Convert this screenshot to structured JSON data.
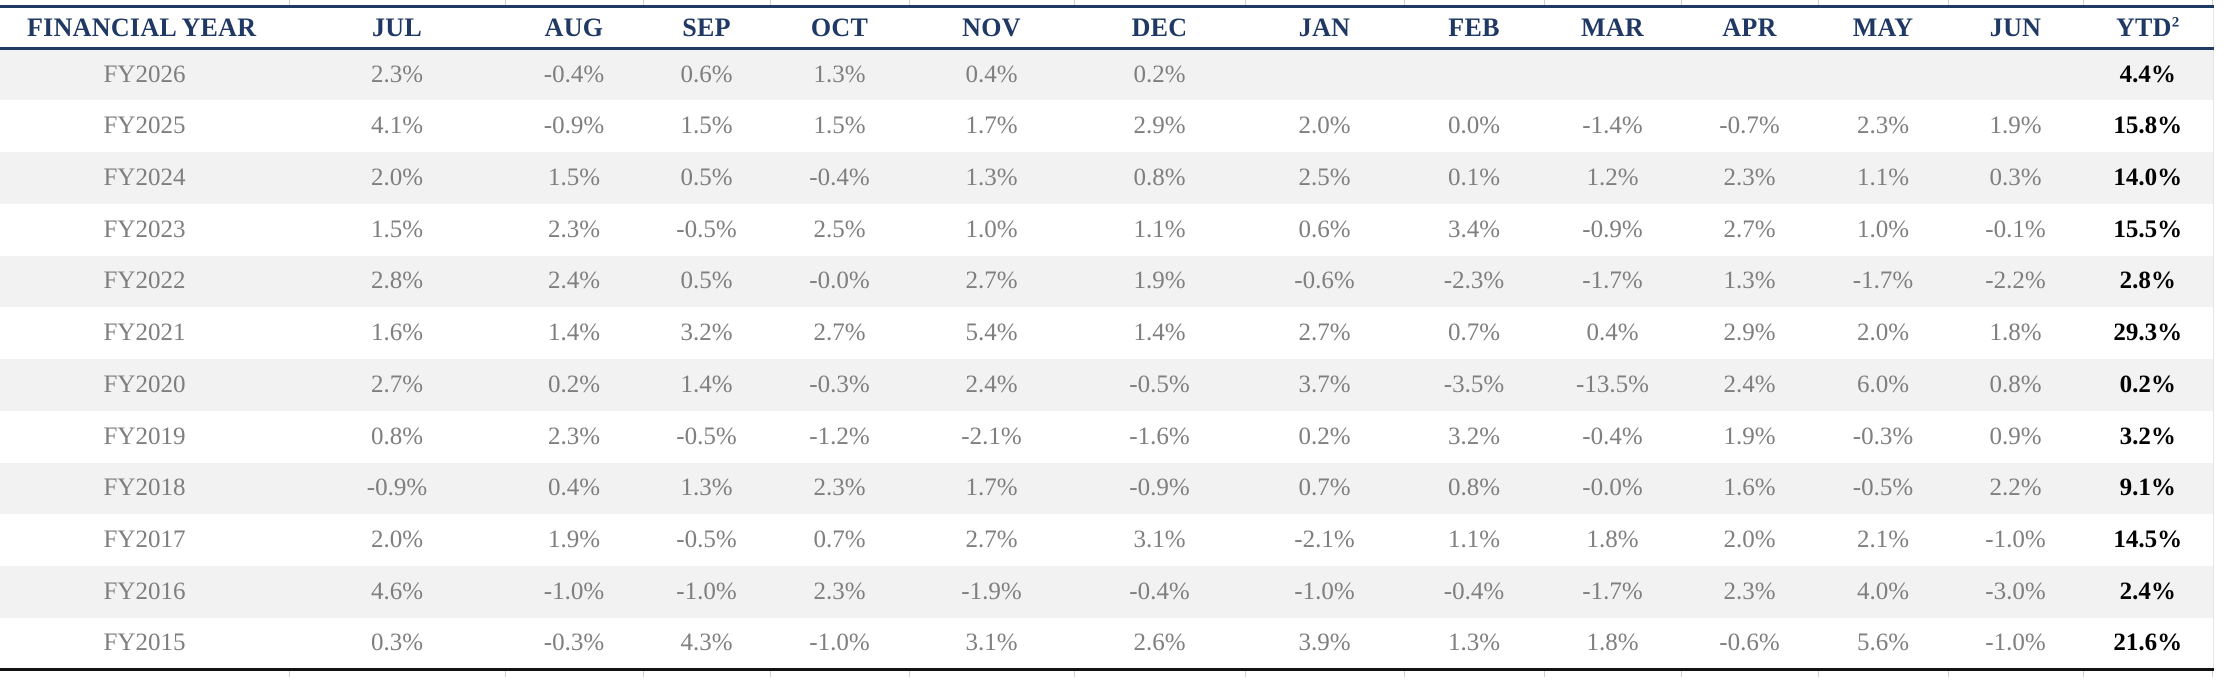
{
  "colors": {
    "header_navy": "#1F3864",
    "value_gray": "#7F7F7F",
    "stripe_gray": "#F2F2F2",
    "ytd_black": "#000000",
    "gridline_stub_gray": "#CFCFCF",
    "bottom_rule": "#121212"
  },
  "chart_data": {
    "type": "table",
    "title": "",
    "columns": [
      "FINANCIAL YEAR",
      "JUL",
      "AUG",
      "SEP",
      "OCT",
      "NOV",
      "DEC",
      "JAN",
      "FEB",
      "MAR",
      "APR",
      "MAY",
      "JUN",
      "YTD"
    ],
    "ytd_superscript": "2",
    "rows": [
      {
        "year": "FY2026",
        "monthly": [
          "2.3%",
          "-0.4%",
          "0.6%",
          "1.3%",
          "0.4%",
          "0.2%",
          "",
          "",
          "",
          "",
          "",
          ""
        ],
        "ytd": "4.4%"
      },
      {
        "year": "FY2025",
        "monthly": [
          "4.1%",
          "-0.9%",
          "1.5%",
          "1.5%",
          "1.7%",
          "2.9%",
          "2.0%",
          "0.0%",
          "-1.4%",
          "-0.7%",
          "2.3%",
          "1.9%"
        ],
        "ytd": "15.8%"
      },
      {
        "year": "FY2024",
        "monthly": [
          "2.0%",
          "1.5%",
          "0.5%",
          "-0.4%",
          "1.3%",
          "0.8%",
          "2.5%",
          "0.1%",
          "1.2%",
          "2.3%",
          "1.1%",
          "0.3%"
        ],
        "ytd": "14.0%"
      },
      {
        "year": "FY2023",
        "monthly": [
          "1.5%",
          "2.3%",
          "-0.5%",
          "2.5%",
          "1.0%",
          "1.1%",
          "0.6%",
          "3.4%",
          "-0.9%",
          "2.7%",
          "1.0%",
          "-0.1%"
        ],
        "ytd": "15.5%"
      },
      {
        "year": "FY2022",
        "monthly": [
          "2.8%",
          "2.4%",
          "0.5%",
          "-0.0%",
          "2.7%",
          "1.9%",
          "-0.6%",
          "-2.3%",
          "-1.7%",
          "1.3%",
          "-1.7%",
          "-2.2%"
        ],
        "ytd": "2.8%"
      },
      {
        "year": "FY2021",
        "monthly": [
          "1.6%",
          "1.4%",
          "3.2%",
          "2.7%",
          "5.4%",
          "1.4%",
          "2.7%",
          "0.7%",
          "0.4%",
          "2.9%",
          "2.0%",
          "1.8%"
        ],
        "ytd": "29.3%"
      },
      {
        "year": "FY2020",
        "monthly": [
          "2.7%",
          "0.2%",
          "1.4%",
          "-0.3%",
          "2.4%",
          "-0.5%",
          "3.7%",
          "-3.5%",
          "-13.5%",
          "2.4%",
          "6.0%",
          "0.8%"
        ],
        "ytd": "0.2%"
      },
      {
        "year": "FY2019",
        "monthly": [
          "0.8%",
          "2.3%",
          "-0.5%",
          "-1.2%",
          "-2.1%",
          "-1.6%",
          "0.2%",
          "3.2%",
          "-0.4%",
          "1.9%",
          "-0.3%",
          "0.9%"
        ],
        "ytd": "3.2%"
      },
      {
        "year": "FY2018",
        "monthly": [
          "-0.9%",
          "0.4%",
          "1.3%",
          "2.3%",
          "1.7%",
          "-0.9%",
          "0.7%",
          "0.8%",
          "-0.0%",
          "1.6%",
          "-0.5%",
          "2.2%"
        ],
        "ytd": "9.1%"
      },
      {
        "year": "FY2017",
        "monthly": [
          "2.0%",
          "1.9%",
          "-0.5%",
          "0.7%",
          "2.7%",
          "3.1%",
          "-2.1%",
          "1.1%",
          "1.8%",
          "2.0%",
          "2.1%",
          "-1.0%"
        ],
        "ytd": "14.5%"
      },
      {
        "year": "FY2016",
        "monthly": [
          "4.6%",
          "-1.0%",
          "-1.0%",
          "2.3%",
          "-1.9%",
          "-0.4%",
          "-1.0%",
          "-0.4%",
          "-1.7%",
          "2.3%",
          "4.0%",
          "-3.0%"
        ],
        "ytd": "2.4%"
      },
      {
        "year": "FY2015",
        "monthly": [
          "0.3%",
          "-0.3%",
          "4.3%",
          "-1.0%",
          "3.1%",
          "2.6%",
          "3.9%",
          "1.3%",
          "1.8%",
          "-0.6%",
          "5.6%",
          "-1.0%"
        ],
        "ytd": "21.6%"
      }
    ]
  }
}
